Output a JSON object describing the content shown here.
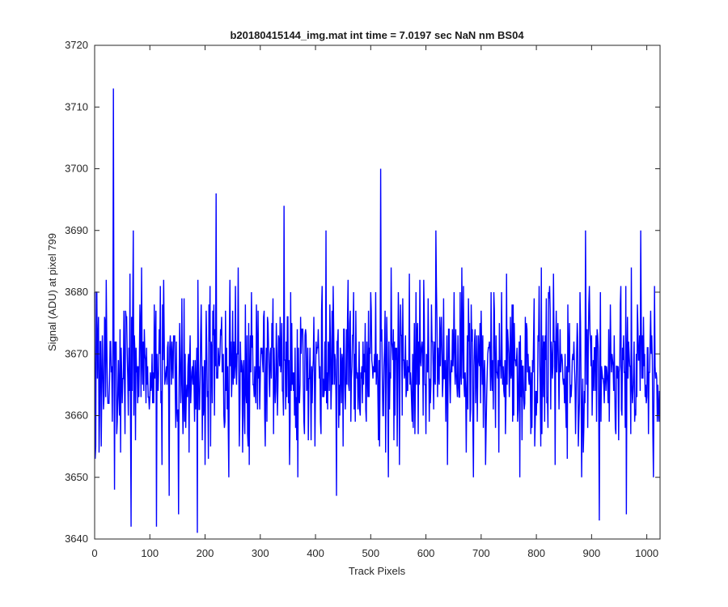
{
  "chart_data": {
    "type": "line",
    "title": "b20180415144_img.mat int time = 7.0197 sec  NaN nm BS04",
    "xlabel": "Track Pixels",
    "ylabel": "Signal (ADU) at pixel 799",
    "xlim": [
      0,
      1024
    ],
    "ylim": [
      3640,
      3720
    ],
    "xticks": [
      0,
      100,
      200,
      300,
      400,
      500,
      600,
      700,
      800,
      900,
      1000
    ],
    "yticks": [
      3640,
      3650,
      3660,
      3670,
      3680,
      3690,
      3700,
      3710,
      3720
    ],
    "grid": false,
    "legend": "none",
    "line_color": "#0000ff",
    "baseline_mean": 3668,
    "noise_band": [
      3656,
      3680
    ],
    "n_points": 1024,
    "notable_points": [
      {
        "x": 1,
        "y": 3653
      },
      {
        "x": 34,
        "y": 3713
      },
      {
        "x": 36,
        "y": 3648
      },
      {
        "x": 66,
        "y": 3642
      },
      {
        "x": 70,
        "y": 3690
      },
      {
        "x": 112,
        "y": 3642
      },
      {
        "x": 135,
        "y": 3647
      },
      {
        "x": 152,
        "y": 3644
      },
      {
        "x": 186,
        "y": 3641
      },
      {
        "x": 220,
        "y": 3696
      },
      {
        "x": 243,
        "y": 3650
      },
      {
        "x": 343,
        "y": 3694
      },
      {
        "x": 368,
        "y": 3650
      },
      {
        "x": 419,
        "y": 3690
      },
      {
        "x": 438,
        "y": 3647
      },
      {
        "x": 518,
        "y": 3700
      },
      {
        "x": 532,
        "y": 3650
      },
      {
        "x": 618,
        "y": 3690
      },
      {
        "x": 686,
        "y": 3650
      },
      {
        "x": 770,
        "y": 3650
      },
      {
        "x": 882,
        "y": 3650
      },
      {
        "x": 889,
        "y": 3690
      },
      {
        "x": 914,
        "y": 3643
      },
      {
        "x": 963,
        "y": 3644
      },
      {
        "x": 989,
        "y": 3690
      },
      {
        "x": 1012,
        "y": 3650
      }
    ]
  }
}
